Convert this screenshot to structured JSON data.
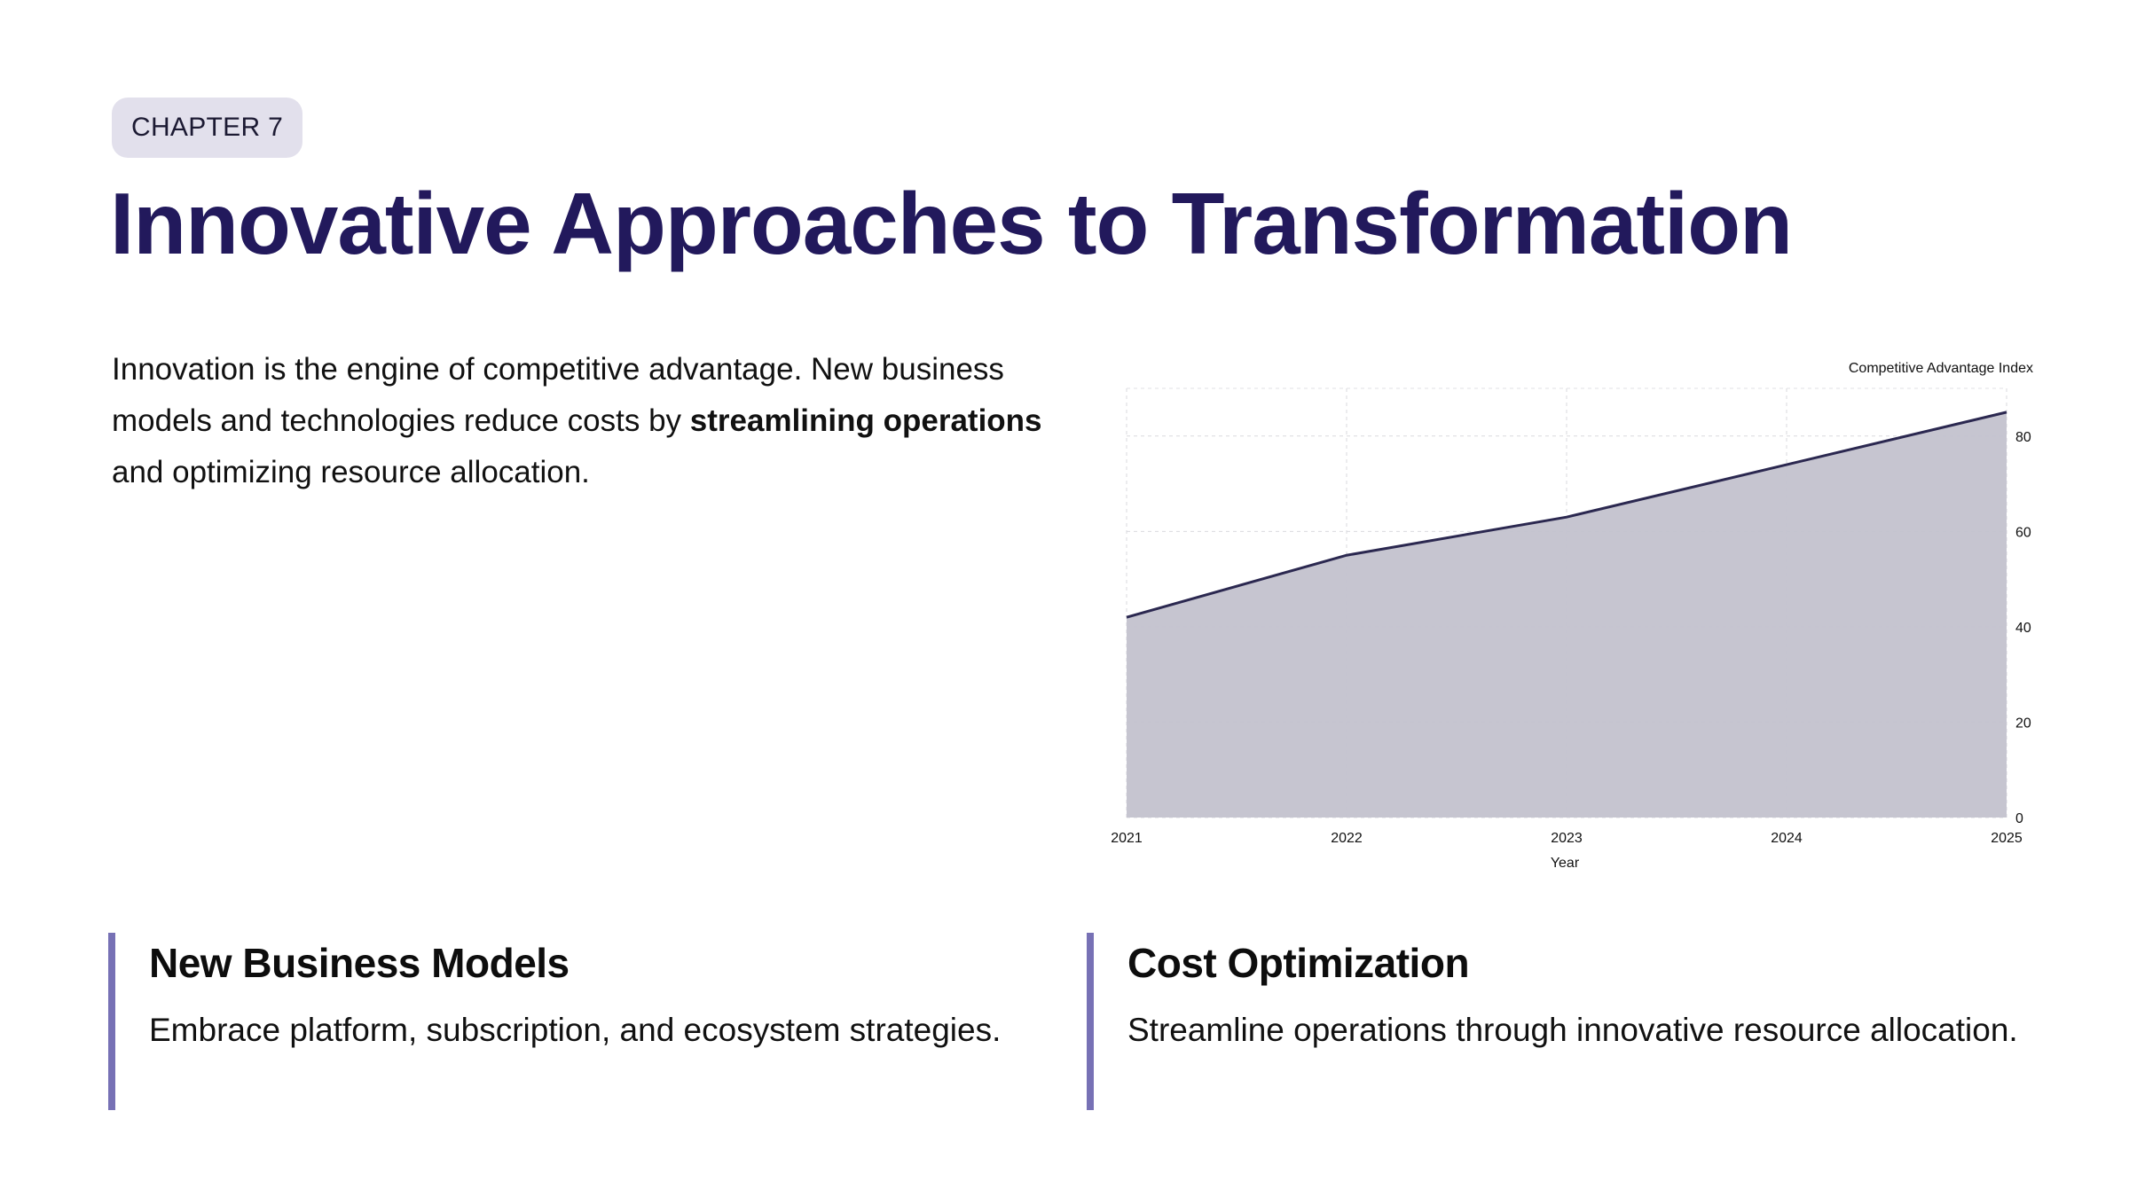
{
  "chapter": {
    "label": "CHAPTER 7"
  },
  "title": "Innovative Approaches to Transformation",
  "intro": {
    "part1": "Innovation is the engine of competitive advantage. New business models and technologies reduce costs by ",
    "bold": "streamlining operations",
    "part2": " and optimizing resource allocation."
  },
  "cards": [
    {
      "title": "New Business Models",
      "text": "Embrace platform, subscription, and ecosystem strategies."
    },
    {
      "title": "Cost Optimization",
      "text": "Streamline operations through innovative resource allocation."
    }
  ],
  "colors": {
    "title": "#22195c",
    "pill_bg": "#e2e0ec",
    "accent_bar": "#7771b5",
    "area_fill": "#c3c2ce",
    "area_line": "#2b2850"
  },
  "chart_data": {
    "type": "area",
    "x": [
      "2021",
      "2022",
      "2023",
      "2024",
      "2025"
    ],
    "series": [
      {
        "name": "Competitive Advantage Index",
        "values": [
          42,
          55,
          63,
          74,
          85
        ]
      }
    ],
    "xlabel": "Year",
    "ylabel": "Competitive Advantage Index",
    "ylim": [
      0,
      90
    ],
    "yticks": [
      0,
      20,
      40,
      60,
      80
    ],
    "y_axis_side": "right",
    "grid": true
  }
}
